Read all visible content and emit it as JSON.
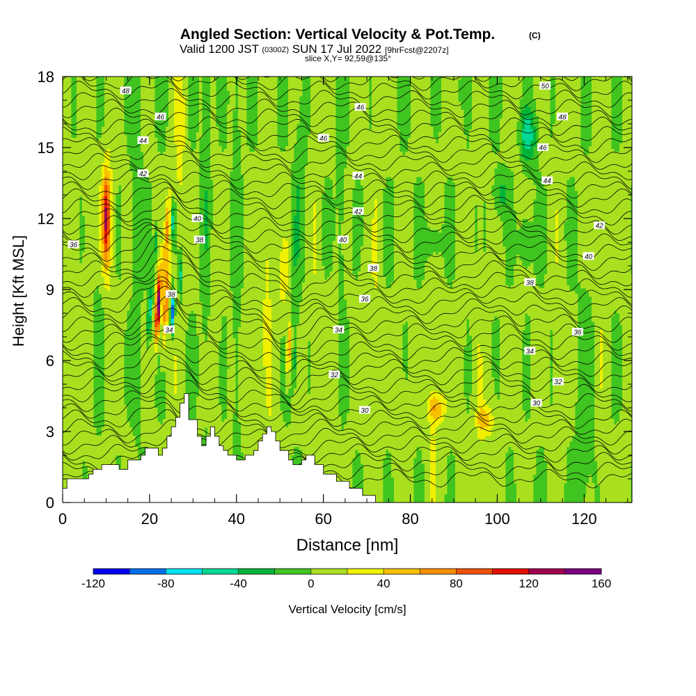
{
  "header": {
    "title": "Angled Section: Vertical Velocity & Pot.Temp.",
    "title_units": "(C)",
    "valid_prefix": "Valid 1200 JST",
    "valid_zulu": "(0300Z)",
    "valid_date": "SUN 17 Jul 2022",
    "forecast": "[9hrFcst@2207z]",
    "slice": "slice X,Y= 92,59@135°"
  },
  "chart_data": {
    "type": "heatmap",
    "xlabel": "Distance [nm]",
    "ylabel": "Height [Kft MSL]",
    "xlim": [
      0,
      131
    ],
    "ylim": [
      0,
      18
    ],
    "x_ticks": [
      "0",
      "20",
      "40",
      "60",
      "80",
      "100",
      "120"
    ],
    "y_ticks": [
      "0",
      "3",
      "6",
      "9",
      "12",
      "15",
      "18"
    ],
    "grid": false,
    "colorbar": {
      "label": "Vertical Velocity [cm/s]",
      "tick_labels": [
        "-120",
        "-80",
        "-40",
        "0",
        "40",
        "80",
        "120",
        "160"
      ],
      "levels": [
        -120,
        -100,
        -80,
        -60,
        -40,
        -20,
        0,
        20,
        40,
        60,
        80,
        100,
        120,
        140,
        160
      ],
      "colors": [
        "#0000f0",
        "#0070f0",
        "#00e0f0",
        "#00d894",
        "#00b43a",
        "#40c420",
        "#a8e020",
        "#f0f000",
        "#f8c000",
        "#f89000",
        "#f05000",
        "#e01000",
        "#a00050",
        "#7c0080"
      ]
    },
    "terrain_profile": {
      "x": [
        0,
        1,
        1,
        6,
        6,
        7,
        7,
        9,
        9,
        13,
        13,
        15,
        15,
        18,
        18,
        19,
        19,
        22,
        22,
        23,
        23,
        24,
        24,
        25,
        25,
        26,
        26,
        27,
        27,
        28,
        28,
        29,
        29,
        31,
        31,
        32,
        32,
        33,
        33,
        34,
        34,
        35,
        35,
        36,
        36,
        37,
        37,
        38,
        38,
        40,
        40,
        42,
        42,
        44,
        44,
        45,
        45,
        46,
        46,
        47,
        47,
        48,
        48,
        49,
        49,
        50,
        50,
        52,
        52,
        53,
        53,
        55,
        55,
        56,
        56,
        58,
        58,
        60,
        60,
        63,
        63,
        66,
        66,
        69,
        69,
        72,
        72,
        131
      ],
      "height": [
        0.6,
        0.6,
        1.0,
        1.0,
        1.2,
        1.2,
        1.4,
        1.4,
        1.6,
        1.6,
        1.4,
        1.4,
        1.8,
        1.8,
        2.0,
        2.0,
        2.3,
        2.3,
        2.0,
        2.0,
        2.3,
        2.3,
        2.8,
        2.8,
        3.2,
        3.2,
        3.6,
        3.6,
        4.2,
        4.2,
        4.6,
        4.6,
        3.5,
        3.5,
        2.8,
        2.8,
        2.4,
        2.4,
        2.8,
        2.8,
        3.2,
        3.2,
        2.8,
        2.8,
        2.4,
        2.4,
        2.2,
        2.2,
        2.0,
        2.0,
        1.8,
        1.8,
        2.0,
        2.0,
        2.2,
        2.2,
        2.6,
        2.6,
        2.9,
        2.9,
        3.2,
        3.2,
        3.0,
        3.0,
        2.6,
        2.6,
        2.2,
        2.2,
        1.8,
        1.8,
        1.6,
        1.6,
        1.8,
        1.8,
        2.0,
        2.0,
        1.6,
        1.6,
        1.2,
        1.2,
        0.9,
        0.9,
        0.6,
        0.6,
        0.3,
        0.3,
        0.0,
        0.0
      ]
    },
    "potential_temperature_labels": [
      {
        "text": "48",
        "x": 14.5,
        "y": 17.4
      },
      {
        "text": "46",
        "x": 22.5,
        "y": 16.3
      },
      {
        "text": "44",
        "x": 18.5,
        "y": 15.3
      },
      {
        "text": "42",
        "x": 18.5,
        "y": 13.9
      },
      {
        "text": "40",
        "x": 31.0,
        "y": 12.0
      },
      {
        "text": "38",
        "x": 31.5,
        "y": 11.1
      },
      {
        "text": "38",
        "x": 25.0,
        "y": 8.8
      },
      {
        "text": "34",
        "x": 24.5,
        "y": 7.3
      },
      {
        "text": "36",
        "x": 2.5,
        "y": 10.9
      },
      {
        "text": "46",
        "x": 68.5,
        "y": 16.7
      },
      {
        "text": "46",
        "x": 60.0,
        "y": 15.4
      },
      {
        "text": "44",
        "x": 68.0,
        "y": 13.8
      },
      {
        "text": "42",
        "x": 68.0,
        "y": 12.3
      },
      {
        "text": "40",
        "x": 64.5,
        "y": 11.1
      },
      {
        "text": "38",
        "x": 71.5,
        "y": 9.9
      },
      {
        "text": "36",
        "x": 69.5,
        "y": 8.6
      },
      {
        "text": "34",
        "x": 63.5,
        "y": 7.3
      },
      {
        "text": "32",
        "x": 62.5,
        "y": 5.4
      },
      {
        "text": "30",
        "x": 69.5,
        "y": 3.9
      },
      {
        "text": "50",
        "x": 111.0,
        "y": 17.6
      },
      {
        "text": "48",
        "x": 115.0,
        "y": 16.3
      },
      {
        "text": "46",
        "x": 110.5,
        "y": 15.0
      },
      {
        "text": "44",
        "x": 111.5,
        "y": 13.6
      },
      {
        "text": "42",
        "x": 123.5,
        "y": 11.7
      },
      {
        "text": "40",
        "x": 121.0,
        "y": 10.4
      },
      {
        "text": "38",
        "x": 107.5,
        "y": 9.3
      },
      {
        "text": "36",
        "x": 118.5,
        "y": 7.2
      },
      {
        "text": "34",
        "x": 107.5,
        "y": 6.4
      },
      {
        "text": "32",
        "x": 114.0,
        "y": 5.1
      },
      {
        "text": "30",
        "x": 109.0,
        "y": 4.2
      }
    ]
  }
}
